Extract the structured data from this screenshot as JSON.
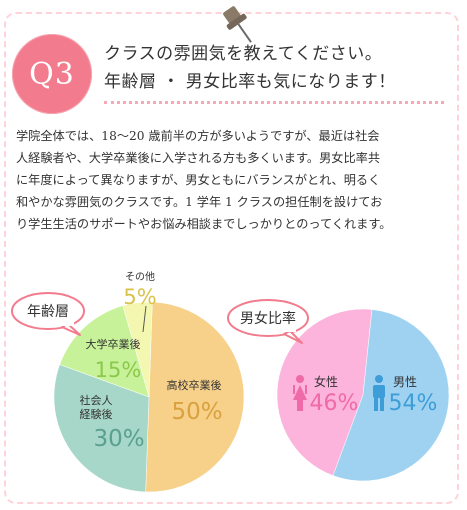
{
  "header": {
    "badge": "Q3",
    "question_line1": "クラスの雰囲気を教えてください。",
    "question_line2": "年齢層 ・ 男女比率も気になります！"
  },
  "body": {
    "lines": [
      "学院全体では、18〜20 歳前半の方が多いようですが、最近は社会",
      "人経験者や、大学卒業後に入学される方も多くいます。男女比率共",
      "に年度によって異なりますが、男女ともにバランスがとれ、明るく",
      "和やかな雰囲気のクラスです。1 学年 1 クラスの担任制を設けてお",
      "り学生生活のサポートやお悩み相談までしっかりとのってくれます。"
    ]
  },
  "colors": {
    "accent": "#f27b8d",
    "divider": "#f5a9b6",
    "highschool": "#f7d08a",
    "adult": "#a7d7c8",
    "university": "#c8f29a",
    "other": "#f4f7b0",
    "female": "#fcb3dc",
    "male": "#9fd2f0"
  },
  "chart_data": [
    {
      "type": "pie",
      "title": "年齢層",
      "slices": [
        {
          "label": "高校卒業後",
          "value": 50,
          "display": "50%",
          "color": "#f7d08a",
          "text_color": "#d9a13f"
        },
        {
          "label": "社会人\n経験後",
          "value": 30,
          "display": "30%",
          "color": "#a7d7c8",
          "text_color": "#5aa08e"
        },
        {
          "label": "大学卒業後",
          "value": 15,
          "display": "15%",
          "color": "#c8f29a",
          "text_color": "#8cc84a"
        },
        {
          "label": "その他",
          "value": 5,
          "display": "5%",
          "color": "#f4f7b0",
          "text_color": "#d9c24a"
        }
      ]
    },
    {
      "type": "pie",
      "title": "男女比率",
      "slices": [
        {
          "label": "女性",
          "value": 46,
          "display": "46%",
          "color": "#fcb3dc",
          "text_color": "#ef6aa8",
          "icon": "female-icon"
        },
        {
          "label": "男性",
          "value": 54,
          "display": "54%",
          "color": "#9fd2f0",
          "text_color": "#3d9dd8",
          "icon": "male-icon"
        }
      ]
    }
  ]
}
